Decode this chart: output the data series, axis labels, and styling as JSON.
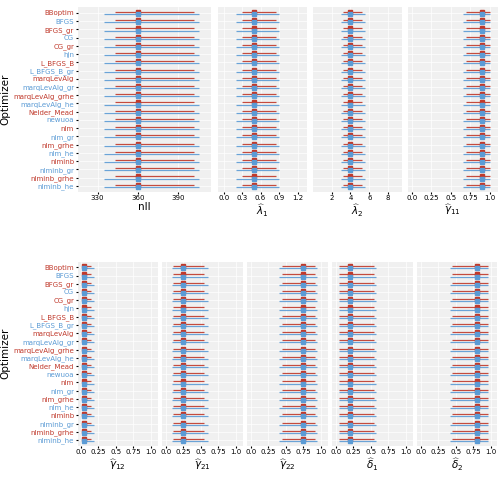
{
  "optimizers": [
    "BBoptim",
    "BFGS",
    "BFGS_gr",
    "CG",
    "CG_gr",
    "hjn",
    "L_BFGS_B",
    "L_BFGS_B_gr",
    "marqLevAlg",
    "marqLevAlg_gr",
    "marqLevAlg_grhe",
    "marqLevAlg_he",
    "Nelder_Mead",
    "newuoa",
    "nlm",
    "nlm_gr",
    "nlm_grhe",
    "nlm_he",
    "nlminb",
    "nlminb_gr",
    "nlminb_grhe",
    "nlminb_he"
  ],
  "top_panels": {
    "nll": {
      "xlabel": "nll",
      "xlim": [
        315,
        415
      ],
      "xticks": [
        330,
        360,
        390
      ],
      "medians_red": [
        360,
        360,
        360,
        360,
        360,
        360,
        360,
        360,
        360,
        360,
        360,
        360,
        360,
        360,
        360,
        360,
        360,
        360,
        360,
        360,
        360,
        360
      ],
      "lo_red": [
        343,
        343,
        343,
        343,
        343,
        343,
        343,
        343,
        343,
        343,
        343,
        343,
        343,
        343,
        343,
        343,
        343,
        343,
        343,
        343,
        343,
        343
      ],
      "hi_red": [
        402,
        402,
        402,
        402,
        402,
        402,
        402,
        402,
        402,
        402,
        402,
        402,
        402,
        402,
        402,
        402,
        402,
        402,
        402,
        402,
        402,
        402
      ],
      "medians_blue": [
        360,
        360,
        360,
        360,
        360,
        360,
        360,
        360,
        360,
        360,
        360,
        360,
        360,
        360,
        360,
        360,
        360,
        360,
        360,
        360,
        360,
        360
      ],
      "lo_blue": [
        335,
        335,
        335,
        335,
        335,
        335,
        335,
        335,
        335,
        335,
        335,
        335,
        335,
        335,
        335,
        335,
        335,
        335,
        335,
        335,
        335,
        335
      ],
      "hi_blue": [
        406,
        406,
        406,
        406,
        406,
        406,
        406,
        406,
        406,
        406,
        406,
        406,
        406,
        406,
        406,
        406,
        406,
        406,
        406,
        406,
        406,
        406
      ]
    },
    "lambda1": {
      "xlabel": "$\\widehat{\\lambda}_1$",
      "xlim": [
        -0.1,
        1.35
      ],
      "xticks": [
        0.0,
        0.3,
        0.6,
        0.9,
        1.2
      ],
      "medians_red": [
        0.5,
        0.5,
        0.5,
        0.5,
        0.5,
        0.5,
        0.5,
        0.5,
        0.5,
        0.5,
        0.5,
        0.5,
        0.5,
        0.5,
        0.5,
        0.5,
        0.5,
        0.5,
        0.5,
        0.5,
        0.5,
        0.5
      ],
      "lo_red": [
        0.3,
        0.3,
        0.3,
        0.3,
        0.3,
        0.3,
        0.3,
        0.3,
        0.3,
        0.3,
        0.3,
        0.3,
        0.3,
        0.3,
        0.3,
        0.3,
        0.3,
        0.3,
        0.3,
        0.3,
        0.3,
        0.3
      ],
      "hi_red": [
        0.85,
        0.85,
        0.85,
        0.85,
        0.85,
        0.85,
        0.85,
        0.85,
        0.85,
        0.85,
        0.85,
        0.85,
        0.85,
        0.85,
        0.85,
        0.85,
        0.85,
        0.85,
        0.85,
        0.85,
        0.85,
        0.85
      ],
      "medians_blue": [
        0.5,
        0.5,
        0.5,
        0.5,
        0.5,
        0.5,
        0.5,
        0.5,
        0.5,
        0.5,
        0.5,
        0.5,
        0.5,
        0.5,
        0.5,
        0.5,
        0.5,
        0.5,
        0.5,
        0.5,
        0.5,
        0.5
      ],
      "lo_blue": [
        0.2,
        0.2,
        0.2,
        0.2,
        0.2,
        0.2,
        0.2,
        0.2,
        0.2,
        0.2,
        0.2,
        0.2,
        0.2,
        0.2,
        0.2,
        0.2,
        0.2,
        0.2,
        0.2,
        0.2,
        0.2,
        0.2
      ],
      "hi_blue": [
        0.9,
        0.9,
        0.9,
        0.9,
        0.9,
        0.9,
        0.9,
        0.9,
        0.9,
        0.9,
        0.9,
        0.9,
        0.9,
        0.9,
        0.9,
        0.9,
        0.9,
        0.9,
        0.9,
        0.9,
        0.9,
        0.9
      ]
    },
    "lambda2": {
      "xlabel": "$\\widehat{\\lambda}_2$",
      "xlim": [
        0,
        9.5
      ],
      "xticks": [
        2,
        4,
        6,
        8
      ],
      "medians_red": [
        4.0,
        4.0,
        4.0,
        4.0,
        4.0,
        4.0,
        4.0,
        4.0,
        4.0,
        4.0,
        4.0,
        4.0,
        4.0,
        4.0,
        4.0,
        4.0,
        4.0,
        4.0,
        4.0,
        4.0,
        4.0,
        4.0
      ],
      "lo_red": [
        3.2,
        3.2,
        3.2,
        3.2,
        3.2,
        3.2,
        3.2,
        3.2,
        3.2,
        3.2,
        3.2,
        3.2,
        3.2,
        3.2,
        3.2,
        3.2,
        3.2,
        3.2,
        3.2,
        3.2,
        3.2,
        3.2
      ],
      "hi_red": [
        5.2,
        5.2,
        5.2,
        5.2,
        5.2,
        5.2,
        5.2,
        5.2,
        5.2,
        5.2,
        5.2,
        5.2,
        5.2,
        5.2,
        5.2,
        5.2,
        5.2,
        5.2,
        5.2,
        5.2,
        5.2,
        5.2
      ],
      "medians_blue": [
        4.0,
        4.0,
        4.0,
        4.0,
        4.0,
        4.0,
        4.0,
        4.0,
        4.0,
        4.0,
        4.0,
        4.0,
        4.0,
        4.0,
        4.0,
        4.0,
        4.0,
        4.0,
        4.0,
        4.0,
        4.0,
        4.0
      ],
      "lo_blue": [
        3.0,
        3.0,
        3.0,
        3.0,
        3.0,
        3.0,
        3.0,
        3.0,
        3.0,
        3.0,
        3.0,
        3.0,
        3.0,
        3.0,
        3.0,
        3.0,
        3.0,
        3.0,
        3.0,
        3.0,
        3.0,
        3.0
      ],
      "hi_blue": [
        5.5,
        5.5,
        5.5,
        5.5,
        5.5,
        5.5,
        5.5,
        5.5,
        5.5,
        5.5,
        5.5,
        5.5,
        5.5,
        5.5,
        5.5,
        5.5,
        5.5,
        5.5,
        5.5,
        5.5,
        5.5,
        5.5
      ]
    },
    "gamma11": {
      "xlabel": "$\\widehat{\\gamma}_{11}$",
      "xlim": [
        -0.05,
        1.1
      ],
      "xticks": [
        0.0,
        0.25,
        0.5,
        0.75,
        1.0
      ],
      "medians_red": [
        0.9,
        0.9,
        0.9,
        0.9,
        0.9,
        0.9,
        0.9,
        0.9,
        0.9,
        0.9,
        0.9,
        0.9,
        0.9,
        0.9,
        0.9,
        0.9,
        0.9,
        0.9,
        0.9,
        0.9,
        0.9,
        0.9
      ],
      "lo_red": [
        0.7,
        0.7,
        0.7,
        0.7,
        0.7,
        0.7,
        0.7,
        0.7,
        0.7,
        0.7,
        0.7,
        0.7,
        0.7,
        0.7,
        0.7,
        0.7,
        0.7,
        0.7,
        0.7,
        0.7,
        0.7,
        0.7
      ],
      "hi_red": [
        1.0,
        1.0,
        1.0,
        1.0,
        1.0,
        1.0,
        1.0,
        1.0,
        1.0,
        1.0,
        1.0,
        1.0,
        1.0,
        1.0,
        1.0,
        1.0,
        1.0,
        1.0,
        1.0,
        1.0,
        1.0,
        1.0
      ],
      "medians_blue": [
        0.9,
        0.9,
        0.9,
        0.9,
        0.9,
        0.9,
        0.9,
        0.9,
        0.9,
        0.9,
        0.9,
        0.9,
        0.9,
        0.9,
        0.9,
        0.9,
        0.9,
        0.9,
        0.9,
        0.9,
        0.9,
        0.9
      ],
      "lo_blue": [
        0.65,
        0.65,
        0.65,
        0.65,
        0.65,
        0.65,
        0.65,
        0.65,
        0.65,
        0.65,
        0.65,
        0.65,
        0.65,
        0.65,
        0.65,
        0.65,
        0.65,
        0.65,
        0.65,
        0.65,
        0.65,
        0.65
      ],
      "hi_blue": [
        1.0,
        1.0,
        1.0,
        1.0,
        1.0,
        1.0,
        1.0,
        1.0,
        1.0,
        1.0,
        1.0,
        1.0,
        1.0,
        1.0,
        1.0,
        1.0,
        1.0,
        1.0,
        1.0,
        1.0,
        1.0,
        1.0
      ]
    }
  },
  "bottom_panels": {
    "gamma12": {
      "xlabel": "$\\widehat{\\gamma}_{12}$",
      "xlim": [
        -0.05,
        1.1
      ],
      "xticks": [
        0.0,
        0.25,
        0.5,
        0.75,
        1.0
      ],
      "medians_red": [
        0.05,
        0.05,
        0.05,
        0.05,
        0.05,
        0.05,
        0.05,
        0.05,
        0.05,
        0.05,
        0.05,
        0.05,
        0.05,
        0.05,
        0.05,
        0.05,
        0.05,
        0.05,
        0.05,
        0.05,
        0.05,
        0.05
      ],
      "lo_red": [
        0.02,
        0.02,
        0.02,
        0.02,
        0.02,
        0.02,
        0.02,
        0.02,
        0.02,
        0.02,
        0.02,
        0.02,
        0.02,
        0.02,
        0.02,
        0.02,
        0.02,
        0.02,
        0.02,
        0.02,
        0.02,
        0.02
      ],
      "hi_red": [
        0.15,
        0.15,
        0.15,
        0.15,
        0.15,
        0.15,
        0.15,
        0.15,
        0.15,
        0.15,
        0.15,
        0.15,
        0.15,
        0.15,
        0.15,
        0.15,
        0.15,
        0.15,
        0.15,
        0.15,
        0.15,
        0.15
      ],
      "medians_blue": [
        0.05,
        0.05,
        0.05,
        0.05,
        0.05,
        0.05,
        0.05,
        0.05,
        0.05,
        0.05,
        0.05,
        0.05,
        0.05,
        0.05,
        0.05,
        0.05,
        0.05,
        0.05,
        0.05,
        0.05,
        0.05,
        0.05
      ],
      "lo_blue": [
        0.01,
        0.01,
        0.01,
        0.01,
        0.01,
        0.01,
        0.01,
        0.01,
        0.01,
        0.01,
        0.01,
        0.01,
        0.01,
        0.01,
        0.01,
        0.01,
        0.01,
        0.01,
        0.01,
        0.01,
        0.01,
        0.01
      ],
      "hi_blue": [
        0.18,
        0.18,
        0.18,
        0.18,
        0.18,
        0.18,
        0.18,
        0.18,
        0.18,
        0.18,
        0.18,
        0.18,
        0.18,
        0.18,
        0.18,
        0.18,
        0.18,
        0.18,
        0.18,
        0.18,
        0.18,
        0.18
      ]
    },
    "gamma21": {
      "xlabel": "$\\widehat{\\gamma}_{21}$",
      "xlim": [
        -0.05,
        1.1
      ],
      "xticks": [
        0.0,
        0.25,
        0.5,
        0.75,
        1.0
      ],
      "medians_red": [
        0.25,
        0.25,
        0.25,
        0.25,
        0.25,
        0.25,
        0.25,
        0.25,
        0.25,
        0.25,
        0.25,
        0.25,
        0.25,
        0.25,
        0.25,
        0.25,
        0.25,
        0.25,
        0.25,
        0.25,
        0.25,
        0.25
      ],
      "lo_red": [
        0.1,
        0.1,
        0.1,
        0.1,
        0.1,
        0.1,
        0.1,
        0.1,
        0.1,
        0.1,
        0.1,
        0.1,
        0.1,
        0.1,
        0.1,
        0.1,
        0.1,
        0.1,
        0.1,
        0.1,
        0.1,
        0.1
      ],
      "hi_red": [
        0.55,
        0.55,
        0.55,
        0.55,
        0.55,
        0.55,
        0.55,
        0.55,
        0.55,
        0.55,
        0.55,
        0.55,
        0.55,
        0.55,
        0.55,
        0.55,
        0.55,
        0.55,
        0.55,
        0.55,
        0.55,
        0.55
      ],
      "medians_blue": [
        0.25,
        0.25,
        0.25,
        0.25,
        0.25,
        0.25,
        0.25,
        0.25,
        0.25,
        0.25,
        0.25,
        0.25,
        0.25,
        0.25,
        0.25,
        0.25,
        0.25,
        0.25,
        0.25,
        0.25,
        0.25,
        0.25
      ],
      "lo_blue": [
        0.08,
        0.08,
        0.08,
        0.08,
        0.08,
        0.08,
        0.08,
        0.08,
        0.08,
        0.08,
        0.08,
        0.08,
        0.08,
        0.08,
        0.08,
        0.08,
        0.08,
        0.08,
        0.08,
        0.08,
        0.08,
        0.08
      ],
      "hi_blue": [
        0.6,
        0.6,
        0.6,
        0.6,
        0.6,
        0.6,
        0.6,
        0.6,
        0.6,
        0.6,
        0.6,
        0.6,
        0.6,
        0.6,
        0.6,
        0.6,
        0.6,
        0.6,
        0.6,
        0.6,
        0.6,
        0.6
      ]
    },
    "gamma22": {
      "xlabel": "$\\widehat{\\gamma}_{22}$",
      "xlim": [
        -0.05,
        1.1
      ],
      "xticks": [
        0.0,
        0.25,
        0.5,
        0.75,
        1.0
      ],
      "medians_red": [
        0.75,
        0.75,
        0.75,
        0.75,
        0.75,
        0.75,
        0.75,
        0.75,
        0.75,
        0.75,
        0.75,
        0.75,
        0.75,
        0.75,
        0.75,
        0.75,
        0.75,
        0.75,
        0.75,
        0.75,
        0.75,
        0.75
      ],
      "lo_red": [
        0.45,
        0.45,
        0.45,
        0.45,
        0.45,
        0.45,
        0.45,
        0.45,
        0.45,
        0.45,
        0.45,
        0.45,
        0.45,
        0.45,
        0.45,
        0.45,
        0.45,
        0.45,
        0.45,
        0.45,
        0.45,
        0.45
      ],
      "hi_red": [
        0.92,
        0.92,
        0.92,
        0.92,
        0.92,
        0.92,
        0.92,
        0.92,
        0.92,
        0.92,
        0.92,
        0.92,
        0.92,
        0.92,
        0.92,
        0.92,
        0.92,
        0.92,
        0.92,
        0.92,
        0.92,
        0.92
      ],
      "medians_blue": [
        0.75,
        0.75,
        0.75,
        0.75,
        0.75,
        0.75,
        0.75,
        0.75,
        0.75,
        0.75,
        0.75,
        0.75,
        0.75,
        0.75,
        0.75,
        0.75,
        0.75,
        0.75,
        0.75,
        0.75,
        0.75,
        0.75
      ],
      "lo_blue": [
        0.4,
        0.4,
        0.4,
        0.4,
        0.4,
        0.4,
        0.4,
        0.4,
        0.4,
        0.4,
        0.4,
        0.4,
        0.4,
        0.4,
        0.4,
        0.4,
        0.4,
        0.4,
        0.4,
        0.4,
        0.4,
        0.4
      ],
      "hi_blue": [
        0.95,
        0.95,
        0.95,
        0.95,
        0.95,
        0.95,
        0.95,
        0.95,
        0.95,
        0.95,
        0.95,
        0.95,
        0.95,
        0.95,
        0.95,
        0.95,
        0.95,
        0.95,
        0.95,
        0.95,
        0.95,
        0.95
      ]
    },
    "delta1": {
      "xlabel": "$\\widehat{\\delta}_1$",
      "xlim": [
        -0.05,
        1.1
      ],
      "xticks": [
        0.0,
        0.25,
        0.5,
        0.75,
        1.0
      ],
      "medians_red": [
        0.2,
        0.2,
        0.2,
        0.2,
        0.2,
        0.2,
        0.2,
        0.2,
        0.2,
        0.2,
        0.2,
        0.2,
        0.2,
        0.2,
        0.2,
        0.2,
        0.2,
        0.2,
        0.2,
        0.2,
        0.2,
        0.2
      ],
      "lo_red": [
        0.05,
        0.05,
        0.05,
        0.05,
        0.05,
        0.05,
        0.05,
        0.05,
        0.05,
        0.05,
        0.05,
        0.05,
        0.05,
        0.05,
        0.05,
        0.05,
        0.05,
        0.05,
        0.05,
        0.05,
        0.05,
        0.05
      ],
      "hi_red": [
        0.55,
        0.55,
        0.55,
        0.55,
        0.55,
        0.55,
        0.55,
        0.55,
        0.55,
        0.55,
        0.55,
        0.55,
        0.55,
        0.55,
        0.55,
        0.55,
        0.55,
        0.55,
        0.55,
        0.55,
        0.55,
        0.55
      ],
      "medians_blue": [
        0.2,
        0.2,
        0.2,
        0.2,
        0.2,
        0.2,
        0.2,
        0.2,
        0.2,
        0.2,
        0.2,
        0.2,
        0.2,
        0.2,
        0.2,
        0.2,
        0.2,
        0.2,
        0.2,
        0.2,
        0.2,
        0.2
      ],
      "lo_blue": [
        0.04,
        0.04,
        0.04,
        0.04,
        0.04,
        0.04,
        0.04,
        0.04,
        0.04,
        0.04,
        0.04,
        0.04,
        0.04,
        0.04,
        0.04,
        0.04,
        0.04,
        0.04,
        0.04,
        0.04,
        0.04,
        0.04
      ],
      "hi_blue": [
        0.58,
        0.58,
        0.58,
        0.58,
        0.58,
        0.58,
        0.58,
        0.58,
        0.58,
        0.58,
        0.58,
        0.58,
        0.58,
        0.58,
        0.58,
        0.58,
        0.58,
        0.58,
        0.58,
        0.58,
        0.58,
        0.58
      ]
    },
    "delta2": {
      "xlabel": "$\\widehat{\\delta}_2$",
      "xlim": [
        -0.05,
        1.1
      ],
      "xticks": [
        0.0,
        0.25,
        0.5,
        0.75,
        1.0
      ],
      "medians_red": [
        0.8,
        0.8,
        0.8,
        0.8,
        0.8,
        0.8,
        0.8,
        0.8,
        0.8,
        0.8,
        0.8,
        0.8,
        0.8,
        0.8,
        0.8,
        0.8,
        0.8,
        0.8,
        0.8,
        0.8,
        0.8,
        0.8
      ],
      "lo_red": [
        0.45,
        0.45,
        0.45,
        0.45,
        0.45,
        0.45,
        0.45,
        0.45,
        0.45,
        0.45,
        0.45,
        0.45,
        0.45,
        0.45,
        0.45,
        0.45,
        0.45,
        0.45,
        0.45,
        0.45,
        0.45,
        0.45
      ],
      "hi_red": [
        0.97,
        0.97,
        0.97,
        0.97,
        0.97,
        0.97,
        0.97,
        0.97,
        0.97,
        0.97,
        0.97,
        0.97,
        0.97,
        0.97,
        0.97,
        0.97,
        0.97,
        0.97,
        0.97,
        0.97,
        0.97,
        0.97
      ],
      "medians_blue": [
        0.8,
        0.8,
        0.8,
        0.8,
        0.8,
        0.8,
        0.8,
        0.8,
        0.8,
        0.8,
        0.8,
        0.8,
        0.8,
        0.8,
        0.8,
        0.8,
        0.8,
        0.8,
        0.8,
        0.8,
        0.8,
        0.8
      ],
      "lo_blue": [
        0.42,
        0.42,
        0.42,
        0.42,
        0.42,
        0.42,
        0.42,
        0.42,
        0.42,
        0.42,
        0.42,
        0.42,
        0.42,
        0.42,
        0.42,
        0.42,
        0.42,
        0.42,
        0.42,
        0.42,
        0.42,
        0.42
      ],
      "hi_blue": [
        0.97,
        0.97,
        0.97,
        0.97,
        0.97,
        0.97,
        0.97,
        0.97,
        0.97,
        0.97,
        0.97,
        0.97,
        0.97,
        0.97,
        0.97,
        0.97,
        0.97,
        0.97,
        0.97,
        0.97,
        0.97,
        0.97
      ]
    }
  },
  "color_red": "#C0392B",
  "color_blue": "#5B9BD5",
  "bg_color": "#F0F0F0",
  "grid_color": "#FFFFFF",
  "ylabel": "Optimizer",
  "fontsize_label": 6.5,
  "fontsize_tick": 5.0
}
